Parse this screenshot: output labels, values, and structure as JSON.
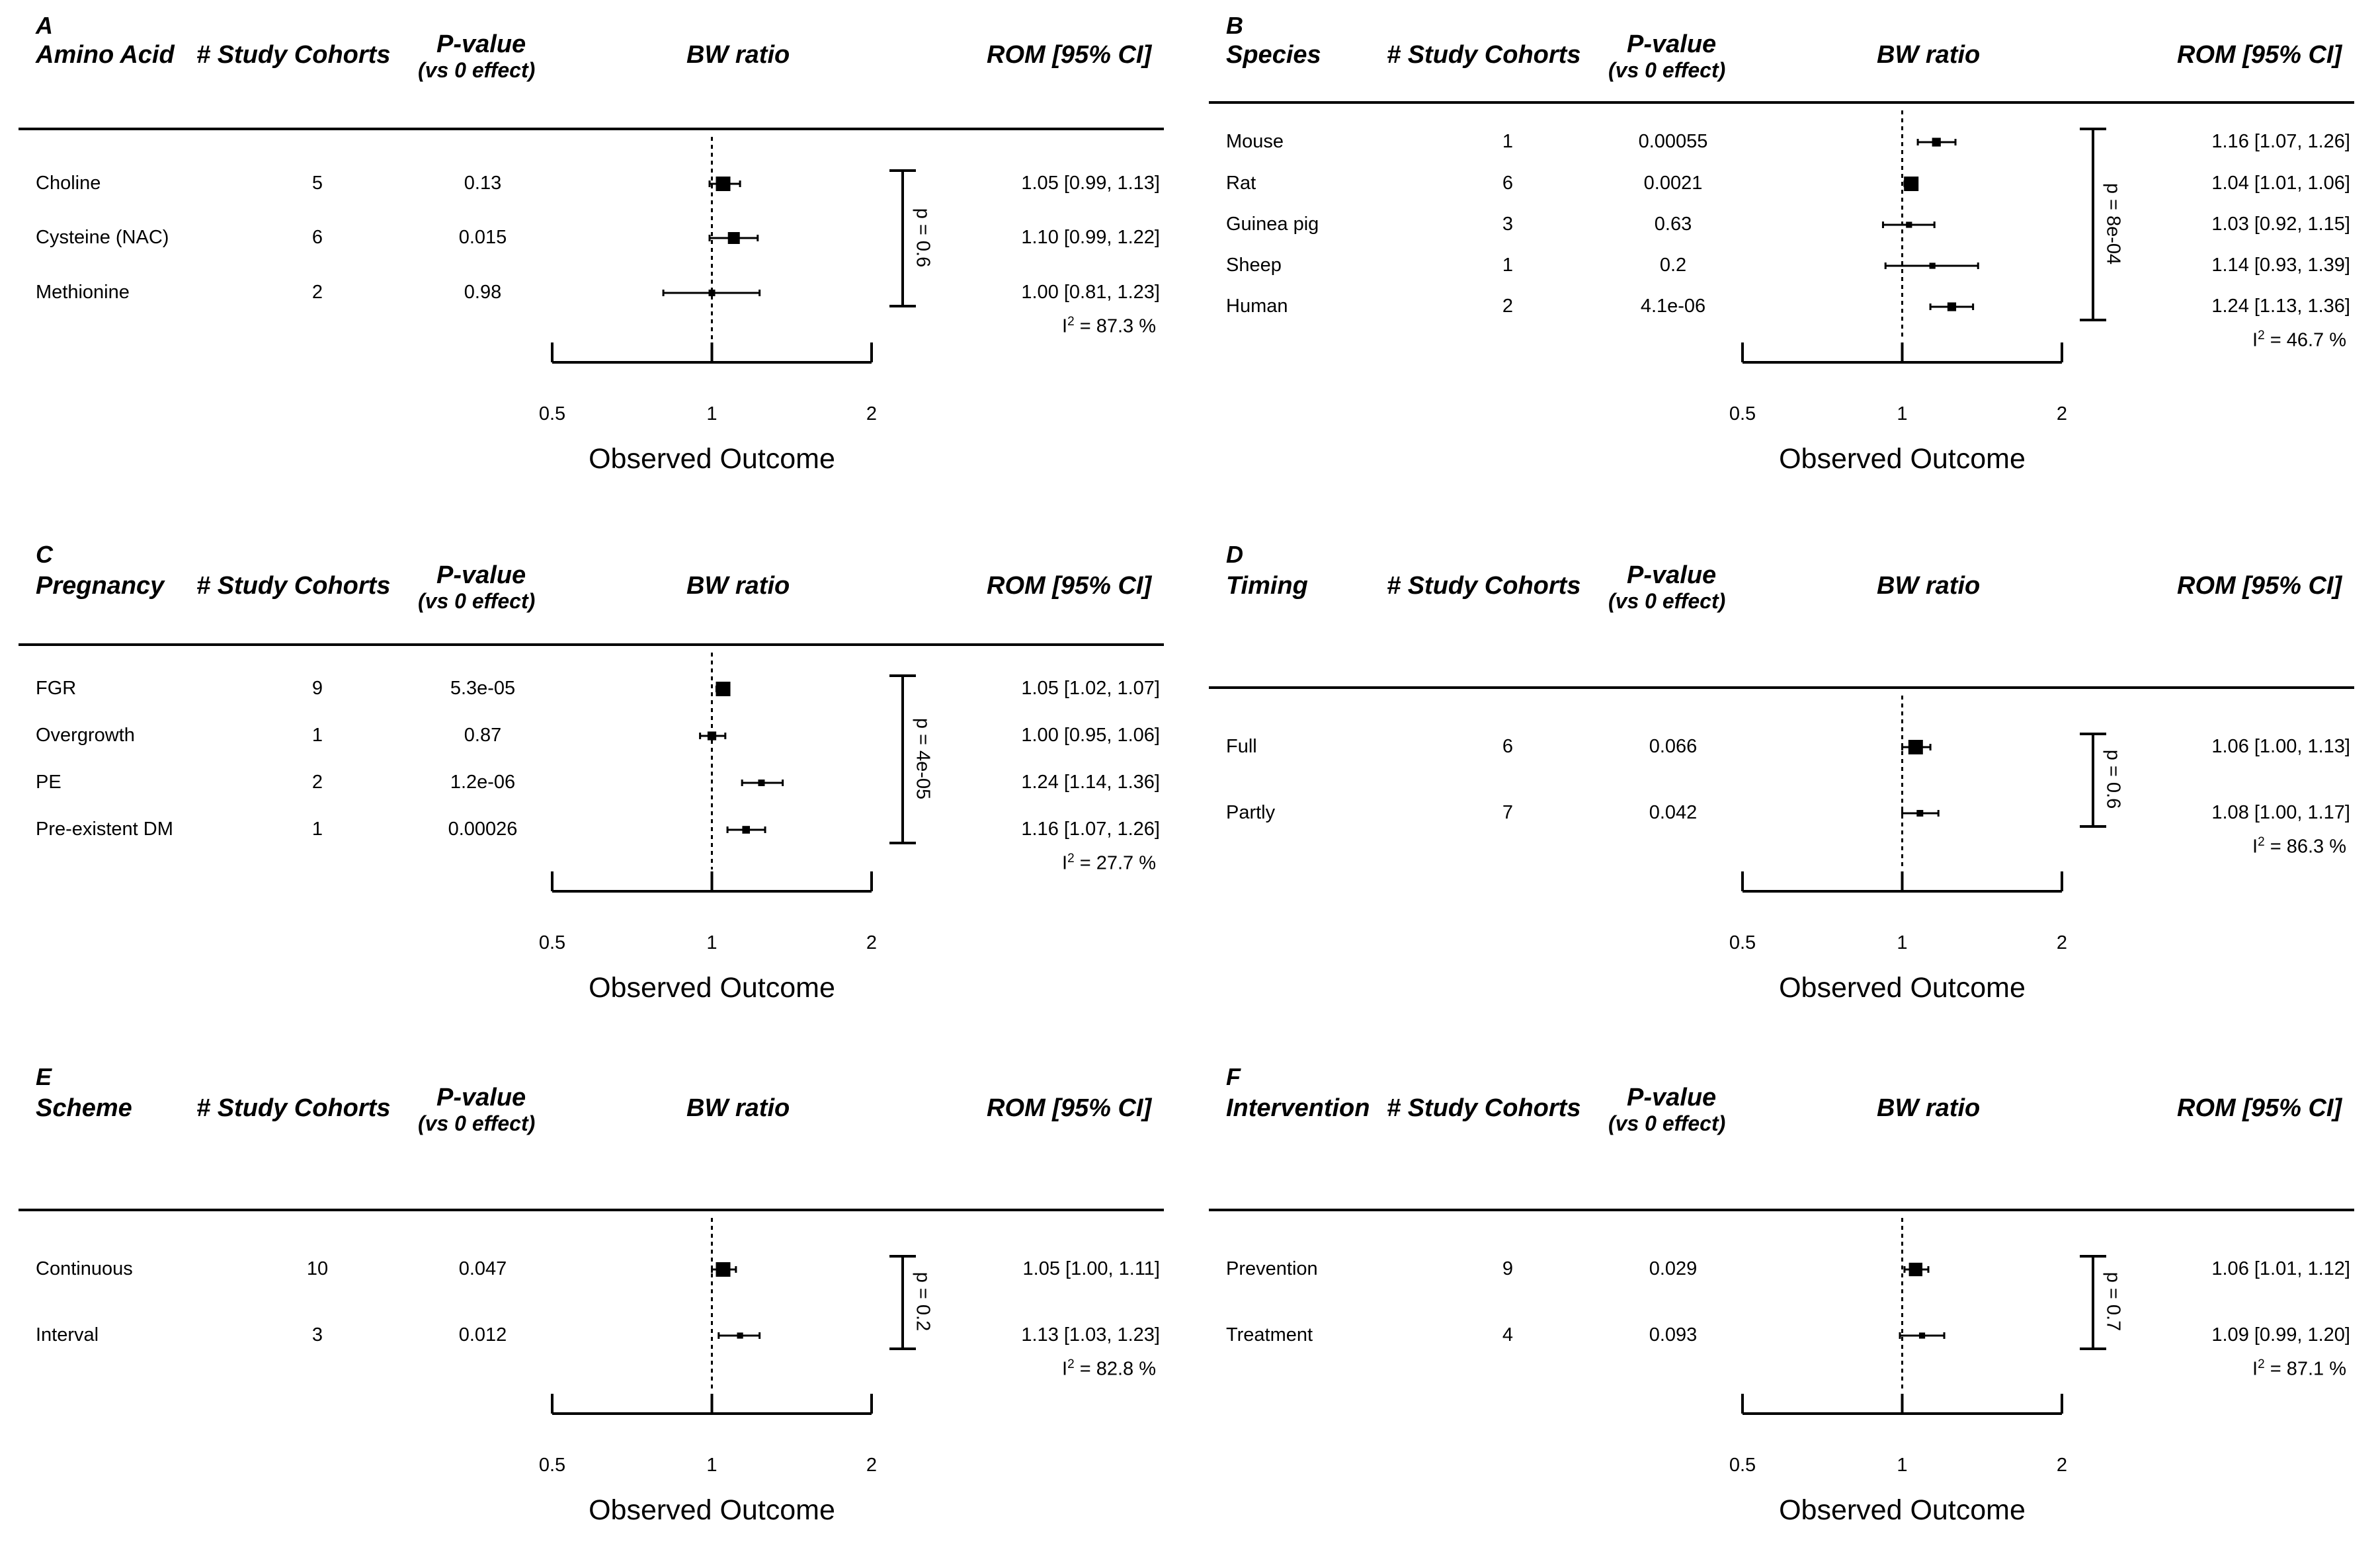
{
  "chart_data": [
    {
      "type": "forest",
      "panel_label": "A",
      "headers": {
        "group": "Amino Acid",
        "cohorts": "# Study Cohorts",
        "pvalue": "P-value",
        "pvalue_sub": "(vs 0 effect)",
        "plot": "BW ratio",
        "rom": "ROM [95% CI]"
      },
      "rows": [
        {
          "label": "Choline",
          "cohorts": "5",
          "pvalue": "0.13",
          "rom_text": "1.05 [0.99, 1.13]",
          "est": 1.05,
          "lo": 0.99,
          "hi": 1.13,
          "size": 2
        },
        {
          "label": "Cysteine (NAC)",
          "cohorts": "6",
          "pvalue": "0.015",
          "rom_text": "1.10 [0.99, 1.22]",
          "est": 1.1,
          "lo": 0.99,
          "hi": 1.22,
          "size": 1.5
        },
        {
          "label": "Methionine",
          "cohorts": "2",
          "pvalue": "0.98",
          "rom_text": "1.00 [0.81, 1.23]",
          "est": 1.0,
          "lo": 0.81,
          "hi": 1.23,
          "size": 0.5
        }
      ],
      "group_p": "p = 0.6",
      "i2_prefix": "I",
      "i2_sup": "2",
      "i2_value": " = 87.3 %",
      "xlabel": "Observed Outcome",
      "xticks": [
        0.5,
        1,
        2
      ],
      "xtick_labels": [
        "0.5",
        "1",
        "2"
      ],
      "xlim": [
        0.5,
        2
      ]
    },
    {
      "type": "forest",
      "panel_label": "B",
      "headers": {
        "group": "Species",
        "cohorts": "# Study Cohorts",
        "pvalue": "P-value",
        "pvalue_sub": "(vs 0 effect)",
        "plot": "BW ratio",
        "rom": "ROM [95% CI]"
      },
      "rows": [
        {
          "label": "Mouse",
          "cohorts": "1",
          "pvalue": "0.00055",
          "rom_text": "1.16 [1.07, 1.26]",
          "est": 1.16,
          "lo": 1.07,
          "hi": 1.26,
          "size": 0.9
        },
        {
          "label": "Rat",
          "cohorts": "6",
          "pvalue": "0.0021",
          "rom_text": "1.04 [1.01, 1.06]",
          "est": 1.04,
          "lo": 1.01,
          "hi": 1.06,
          "size": 2
        },
        {
          "label": "Guinea pig",
          "cohorts": "3",
          "pvalue": "0.63",
          "rom_text": "1.03 [0.92, 1.15]",
          "est": 1.03,
          "lo": 0.92,
          "hi": 1.15,
          "size": 0.4
        },
        {
          "label": "Sheep",
          "cohorts": "1",
          "pvalue": "0.2",
          "rom_text": "1.14 [0.93, 1.39]",
          "est": 1.14,
          "lo": 0.93,
          "hi": 1.39,
          "size": 0.4
        },
        {
          "label": "Human",
          "cohorts": "2",
          "pvalue": "4.1e-06",
          "rom_text": "1.24 [1.13, 1.36]",
          "est": 1.24,
          "lo": 1.13,
          "hi": 1.36,
          "size": 0.9
        }
      ],
      "group_p": "p = 8e-04",
      "i2_prefix": "I",
      "i2_sup": "2",
      "i2_value": " = 46.7 %",
      "xlabel": "Observed Outcome",
      "xticks": [
        0.5,
        1,
        2
      ],
      "xtick_labels": [
        "0.5",
        "1",
        "2"
      ],
      "xlim": [
        0.5,
        2
      ]
    },
    {
      "type": "forest",
      "panel_label": "C",
      "headers": {
        "group": "Pregnancy",
        "cohorts": "# Study Cohorts",
        "pvalue": "P-value",
        "pvalue_sub": "(vs 0 effect)",
        "plot": "BW ratio",
        "rom": "ROM [95% CI]"
      },
      "rows": [
        {
          "label": "FGR",
          "cohorts": "9",
          "pvalue": "5.3e-05",
          "rom_text": "1.05 [1.02, 1.07]",
          "est": 1.05,
          "lo": 1.02,
          "hi": 1.07,
          "size": 2
        },
        {
          "label": "Overgrowth",
          "cohorts": "1",
          "pvalue": "0.87",
          "rom_text": "1.00 [0.95, 1.06]",
          "est": 1.0,
          "lo": 0.95,
          "hi": 1.06,
          "size": 0.9
        },
        {
          "label": "PE",
          "cohorts": "2",
          "pvalue": "1.2e-06",
          "rom_text": "1.24 [1.14, 1.36]",
          "est": 1.24,
          "lo": 1.14,
          "hi": 1.36,
          "size": 0.5
        },
        {
          "label": "Pre-existent DM",
          "cohorts": "1",
          "pvalue": "0.00026",
          "rom_text": "1.16 [1.07, 1.26]",
          "est": 1.16,
          "lo": 1.07,
          "hi": 1.26,
          "size": 0.7
        }
      ],
      "group_p": "p = 4e-05",
      "i2_prefix": "I",
      "i2_sup": "2",
      "i2_value": " = 27.7 %",
      "xlabel": "Observed Outcome",
      "xticks": [
        0.5,
        1,
        2
      ],
      "xtick_labels": [
        "0.5",
        "1",
        "2"
      ],
      "xlim": [
        0.5,
        2
      ]
    },
    {
      "type": "forest",
      "panel_label": "D",
      "headers": {
        "group": "Timing",
        "cohorts": "# Study Cohorts",
        "pvalue": "P-value",
        "pvalue_sub": "(vs 0 effect)",
        "plot": "BW ratio",
        "rom": "ROM [95% CI]"
      },
      "rows": [
        {
          "label": "Full",
          "cohorts": "6",
          "pvalue": "0.066",
          "rom_text": "1.06 [1.00, 1.13]",
          "est": 1.06,
          "lo": 1.0,
          "hi": 1.13,
          "size": 2
        },
        {
          "label": "Partly",
          "cohorts": "7",
          "pvalue": "0.042",
          "rom_text": "1.08 [1.00, 1.17]",
          "est": 1.08,
          "lo": 1.0,
          "hi": 1.17,
          "size": 0.5
        }
      ],
      "group_p": "p = 0.6",
      "i2_prefix": "I",
      "i2_sup": "2",
      "i2_value": " = 86.3 %",
      "xlabel": "Observed Outcome",
      "xticks": [
        0.5,
        1,
        2
      ],
      "xtick_labels": [
        "0.5",
        "1",
        "2"
      ],
      "xlim": [
        0.5,
        2
      ]
    },
    {
      "type": "forest",
      "panel_label": "E",
      "headers": {
        "group": "Scheme",
        "cohorts": "# Study Cohorts",
        "pvalue": "P-value",
        "pvalue_sub": "(vs 0 effect)",
        "plot": "BW ratio",
        "rom": "ROM [95% CI]"
      },
      "rows": [
        {
          "label": "Continuous",
          "cohorts": "10",
          "pvalue": "0.047",
          "rom_text": "1.05 [1.00, 1.11]",
          "est": 1.05,
          "lo": 1.0,
          "hi": 1.11,
          "size": 2
        },
        {
          "label": "Interval",
          "cohorts": "3",
          "pvalue": "0.012",
          "rom_text": "1.13 [1.03, 1.23]",
          "est": 1.13,
          "lo": 1.03,
          "hi": 1.23,
          "size": 0.4
        }
      ],
      "group_p": "p = 0.2",
      "i2_prefix": "I",
      "i2_sup": "2",
      "i2_value": " = 82.8 %",
      "xlabel": "Observed Outcome",
      "xticks": [
        0.5,
        1,
        2
      ],
      "xtick_labels": [
        "0.5",
        "1",
        "2"
      ],
      "xlim": [
        0.5,
        2
      ]
    },
    {
      "type": "forest",
      "panel_label": "F",
      "headers": {
        "group": "Intervention",
        "cohorts": "# Study Cohorts",
        "pvalue": "P-value",
        "pvalue_sub": "(vs 0 effect)",
        "plot": "BW ratio",
        "rom": "ROM [95% CI]"
      },
      "rows": [
        {
          "label": "Prevention",
          "cohorts": "9",
          "pvalue": "0.029",
          "rom_text": "1.06 [1.01, 1.12]",
          "est": 1.06,
          "lo": 1.01,
          "hi": 1.12,
          "size": 1.8
        },
        {
          "label": "Treatment",
          "cohorts": "4",
          "pvalue": "0.093",
          "rom_text": "1.09 [0.99, 1.20]",
          "est": 1.09,
          "lo": 0.99,
          "hi": 1.2,
          "size": 0.4
        }
      ],
      "group_p": "p = 0.7",
      "i2_prefix": "I",
      "i2_sup": "2",
      "i2_value": " = 87.1 %",
      "xlabel": "Observed Outcome",
      "xticks": [
        0.5,
        1,
        2
      ],
      "xtick_labels": [
        "0.5",
        "1",
        "2"
      ],
      "xlim": [
        0.5,
        2
      ]
    }
  ]
}
